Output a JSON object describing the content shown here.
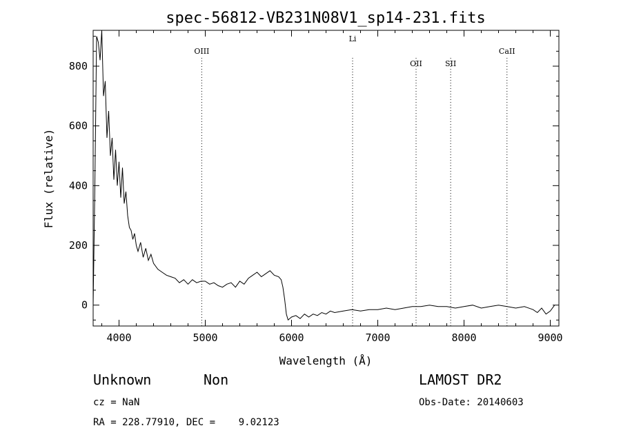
{
  "chart_data": {
    "type": "line",
    "title": "spec-56812-VB231N08V1_sp14-231.fits",
    "xlabel": "Wavelength (Å)",
    "ylabel": "Flux (relative)",
    "xlim": [
      3700,
      9100
    ],
    "ylim": [
      -70,
      920
    ],
    "x_ticks": [
      4000,
      5000,
      6000,
      7000,
      8000,
      9000
    ],
    "x_tick_labels": [
      "4000",
      "5000",
      "6000",
      "7000",
      "8000",
      "9000"
    ],
    "y_ticks": [
      0,
      200,
      400,
      600,
      800
    ],
    "y_tick_labels": [
      "0",
      "200",
      "400",
      "600",
      "800"
    ],
    "grid": false,
    "series": [
      {
        "x": [
          3700,
          3720,
          3740,
          3760,
          3780,
          3800,
          3820,
          3840,
          3860,
          3880,
          3900,
          3920,
          3940,
          3960,
          3980,
          4000,
          4020,
          4040,
          4060,
          4080,
          4100,
          4120,
          4140,
          4160,
          4180,
          4200,
          4220,
          4250,
          4280,
          4310,
          4340,
          4370,
          4400,
          4450,
          4500,
          4550,
          4600,
          4650,
          4700,
          4750,
          4800,
          4850,
          4900,
          4950,
          5000,
          5050,
          5100,
          5150,
          5200,
          5250,
          5300,
          5350,
          5400,
          5450,
          5500,
          5550,
          5600,
          5650,
          5700,
          5750,
          5800,
          5850,
          5880,
          5900,
          5920,
          5940,
          5960,
          6000,
          6050,
          6100,
          6150,
          6200,
          6250,
          6300,
          6350,
          6400,
          6450,
          6500,
          6600,
          6700,
          6800,
          6900,
          7000,
          7100,
          7200,
          7300,
          7400,
          7500,
          7600,
          7700,
          7800,
          7900,
          8000,
          8100,
          8200,
          8300,
          8400,
          8500,
          8600,
          8700,
          8800,
          8850,
          8900,
          8950,
          9000,
          9050
        ],
        "y": [
          0,
          400,
          900,
          880,
          820,
          920,
          700,
          750,
          560,
          650,
          500,
          560,
          420,
          520,
          400,
          480,
          360,
          460,
          340,
          380,
          300,
          260,
          250,
          220,
          240,
          200,
          180,
          210,
          160,
          190,
          150,
          170,
          140,
          120,
          110,
          100,
          95,
          90,
          75,
          85,
          70,
          85,
          75,
          80,
          80,
          70,
          75,
          65,
          60,
          70,
          75,
          60,
          80,
          70,
          90,
          100,
          110,
          95,
          105,
          115,
          100,
          95,
          85,
          60,
          20,
          -30,
          -50,
          -40,
          -35,
          -45,
          -30,
          -40,
          -30,
          -35,
          -25,
          -30,
          -20,
          -25,
          -20,
          -15,
          -20,
          -15,
          -15,
          -10,
          -15,
          -10,
          -5,
          -5,
          0,
          -5,
          -5,
          -10,
          -5,
          0,
          -10,
          -5,
          0,
          -5,
          -10,
          -5,
          -15,
          -25,
          -10,
          -30,
          -20,
          0
        ]
      }
    ],
    "line_markers": [
      {
        "name": "OIII",
        "x": 4959
      },
      {
        "name": "Li",
        "x": 6708
      },
      {
        "name": "OII",
        "x": 7444
      },
      {
        "name": "SII",
        "x": 7845
      },
      {
        "name": "CaII",
        "x": 8498
      }
    ]
  },
  "info": {
    "class": "Unknown",
    "subclass": "Non",
    "cz": "cz = NaN",
    "radec": "RA = 228.77910, DEC =    9.02123",
    "survey": "LAMOST DR2",
    "obs_date": "Obs-Date: 20140603"
  }
}
